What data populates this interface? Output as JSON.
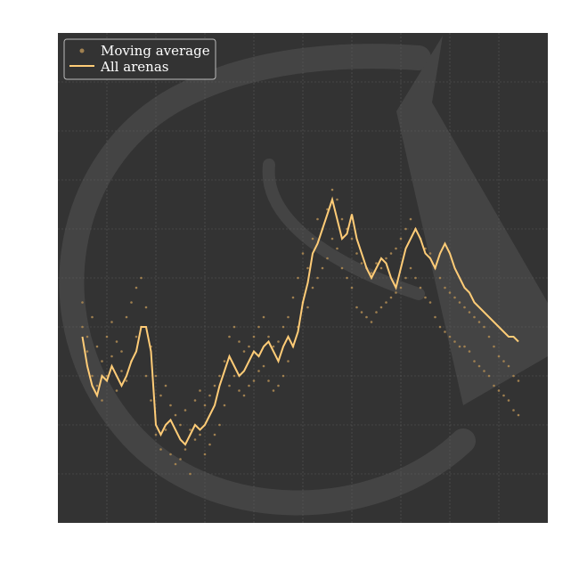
{
  "chart_data": {
    "type": "scatter",
    "title": "",
    "xlabel": "",
    "ylabel": "",
    "xlim": [
      0,
      100
    ],
    "ylim": [
      0,
      100
    ],
    "grid": true,
    "legend_position": "top-left",
    "background_color": "#333333",
    "watermark_color": "#444444",
    "grid_color": "#5a5a5a",
    "dot_color": "#a08050",
    "line_color": "#ffcc77",
    "series": [
      {
        "name": "Moving average",
        "kind": "scatter",
        "points_note": "dense cloud of small dots around the moving average line",
        "points": [
          [
            5,
            45
          ],
          [
            5,
            40
          ],
          [
            6,
            38
          ],
          [
            6,
            35
          ],
          [
            7,
            42
          ],
          [
            7,
            30
          ],
          [
            8,
            36
          ],
          [
            8,
            28
          ],
          [
            9,
            33
          ],
          [
            9,
            25
          ],
          [
            10,
            38
          ],
          [
            10,
            30
          ],
          [
            11,
            41
          ],
          [
            11,
            34
          ],
          [
            12,
            37
          ],
          [
            12,
            27
          ],
          [
            13,
            35
          ],
          [
            13,
            31
          ],
          [
            14,
            42
          ],
          [
            14,
            29
          ],
          [
            15,
            45
          ],
          [
            15,
            33
          ],
          [
            16,
            48
          ],
          [
            16,
            38
          ],
          [
            17,
            50
          ],
          [
            17,
            40
          ],
          [
            18,
            44
          ],
          [
            18,
            30
          ],
          [
            19,
            36
          ],
          [
            19,
            25
          ],
          [
            20,
            30
          ],
          [
            20,
            18
          ],
          [
            21,
            26
          ],
          [
            21,
            15
          ],
          [
            22,
            28
          ],
          [
            22,
            19
          ],
          [
            23,
            24
          ],
          [
            23,
            14
          ],
          [
            24,
            22
          ],
          [
            24,
            12
          ],
          [
            25,
            20
          ],
          [
            25,
            13
          ],
          [
            26,
            23
          ],
          [
            26,
            15
          ],
          [
            27,
            19
          ],
          [
            27,
            10
          ],
          [
            28,
            25
          ],
          [
            28,
            17
          ],
          [
            29,
            27
          ],
          [
            29,
            18
          ],
          [
            30,
            24
          ],
          [
            30,
            14
          ],
          [
            31,
            26
          ],
          [
            31,
            16
          ],
          [
            32,
            28
          ],
          [
            32,
            18
          ],
          [
            33,
            30
          ],
          [
            33,
            20
          ],
          [
            34,
            33
          ],
          [
            34,
            24
          ],
          [
            35,
            38
          ],
          [
            35,
            28
          ],
          [
            36,
            40
          ],
          [
            36,
            30
          ],
          [
            37,
            37
          ],
          [
            37,
            27
          ],
          [
            38,
            35
          ],
          [
            38,
            26
          ],
          [
            39,
            36
          ],
          [
            39,
            28
          ],
          [
            40,
            38
          ],
          [
            40,
            29
          ],
          [
            41,
            40
          ],
          [
            41,
            31
          ],
          [
            42,
            42
          ],
          [
            42,
            32
          ],
          [
            43,
            38
          ],
          [
            43,
            29
          ],
          [
            44,
            36
          ],
          [
            44,
            27
          ],
          [
            45,
            37
          ],
          [
            45,
            28
          ],
          [
            46,
            40
          ],
          [
            46,
            30
          ],
          [
            47,
            42
          ],
          [
            47,
            33
          ],
          [
            48,
            46
          ],
          [
            48,
            36
          ],
          [
            49,
            50
          ],
          [
            49,
            40
          ],
          [
            50,
            55
          ],
          [
            50,
            45
          ],
          [
            51,
            52
          ],
          [
            51,
            44
          ],
          [
            52,
            58
          ],
          [
            52,
            48
          ],
          [
            53,
            62
          ],
          [
            53,
            50
          ],
          [
            54,
            60
          ],
          [
            54,
            52
          ],
          [
            55,
            64
          ],
          [
            55,
            54
          ],
          [
            56,
            68
          ],
          [
            56,
            58
          ],
          [
            57,
            66
          ],
          [
            57,
            56
          ],
          [
            58,
            62
          ],
          [
            58,
            52
          ],
          [
            59,
            60
          ],
          [
            59,
            50
          ],
          [
            60,
            58
          ],
          [
            60,
            48
          ],
          [
            61,
            55
          ],
          [
            61,
            44
          ],
          [
            62,
            53
          ],
          [
            62,
            43
          ],
          [
            63,
            52
          ],
          [
            63,
            42
          ],
          [
            64,
            51
          ],
          [
            64,
            41
          ],
          [
            65,
            53
          ],
          [
            65,
            43
          ],
          [
            66,
            52
          ],
          [
            66,
            44
          ],
          [
            67,
            54
          ],
          [
            67,
            45
          ],
          [
            68,
            55
          ],
          [
            68,
            46
          ],
          [
            69,
            56
          ],
          [
            69,
            47
          ],
          [
            70,
            58
          ],
          [
            70,
            48
          ],
          [
            71,
            60
          ],
          [
            71,
            50
          ],
          [
            72,
            62
          ],
          [
            72,
            52
          ],
          [
            73,
            60
          ],
          [
            73,
            50
          ],
          [
            74,
            58
          ],
          [
            74,
            48
          ],
          [
            75,
            56
          ],
          [
            75,
            46
          ],
          [
            76,
            55
          ],
          [
            76,
            45
          ],
          [
            77,
            52
          ],
          [
            77,
            42
          ],
          [
            78,
            50
          ],
          [
            78,
            40
          ],
          [
            79,
            48
          ],
          [
            79,
            39
          ],
          [
            80,
            47
          ],
          [
            80,
            38
          ],
          [
            81,
            46
          ],
          [
            81,
            37
          ],
          [
            82,
            45
          ],
          [
            82,
            36
          ],
          [
            83,
            44
          ],
          [
            83,
            36
          ],
          [
            84,
            43
          ],
          [
            84,
            35
          ],
          [
            85,
            42
          ],
          [
            85,
            33
          ],
          [
            86,
            41
          ],
          [
            86,
            32
          ],
          [
            87,
            40
          ],
          [
            87,
            31
          ],
          [
            88,
            38
          ],
          [
            88,
            30
          ],
          [
            89,
            36
          ],
          [
            89,
            28
          ],
          [
            90,
            34
          ],
          [
            90,
            27
          ],
          [
            91,
            33
          ],
          [
            91,
            26
          ],
          [
            92,
            32
          ],
          [
            92,
            25
          ],
          [
            93,
            30
          ],
          [
            93,
            23
          ],
          [
            94,
            29
          ],
          [
            94,
            22
          ]
        ]
      },
      {
        "name": "All arenas",
        "kind": "line",
        "points": [
          [
            5,
            38
          ],
          [
            6,
            32
          ],
          [
            7,
            28
          ],
          [
            8,
            26
          ],
          [
            9,
            30
          ],
          [
            10,
            29
          ],
          [
            11,
            32
          ],
          [
            12,
            30
          ],
          [
            13,
            28
          ],
          [
            14,
            30
          ],
          [
            15,
            33
          ],
          [
            16,
            35
          ],
          [
            17,
            40
          ],
          [
            18,
            40
          ],
          [
            19,
            35
          ],
          [
            20,
            20
          ],
          [
            21,
            18
          ],
          [
            22,
            20
          ],
          [
            23,
            21
          ],
          [
            24,
            19
          ],
          [
            25,
            17
          ],
          [
            26,
            16
          ],
          [
            27,
            18
          ],
          [
            28,
            20
          ],
          [
            29,
            19
          ],
          [
            30,
            20
          ],
          [
            31,
            22
          ],
          [
            32,
            24
          ],
          [
            33,
            28
          ],
          [
            34,
            31
          ],
          [
            35,
            34
          ],
          [
            36,
            32
          ],
          [
            37,
            30
          ],
          [
            38,
            31
          ],
          [
            39,
            33
          ],
          [
            40,
            35
          ],
          [
            41,
            34
          ],
          [
            42,
            36
          ],
          [
            43,
            37
          ],
          [
            44,
            35
          ],
          [
            45,
            33
          ],
          [
            46,
            36
          ],
          [
            47,
            38
          ],
          [
            48,
            36
          ],
          [
            49,
            39
          ],
          [
            50,
            45
          ],
          [
            51,
            49
          ],
          [
            52,
            55
          ],
          [
            53,
            57
          ],
          [
            54,
            60
          ],
          [
            55,
            63
          ],
          [
            56,
            66
          ],
          [
            57,
            62
          ],
          [
            58,
            58
          ],
          [
            59,
            59
          ],
          [
            60,
            63
          ],
          [
            61,
            58
          ],
          [
            62,
            55
          ],
          [
            63,
            52
          ],
          [
            64,
            50
          ],
          [
            65,
            52
          ],
          [
            66,
            54
          ],
          [
            67,
            53
          ],
          [
            68,
            50
          ],
          [
            69,
            48
          ],
          [
            70,
            52
          ],
          [
            71,
            56
          ],
          [
            72,
            58
          ],
          [
            73,
            60
          ],
          [
            74,
            58
          ],
          [
            75,
            55
          ],
          [
            76,
            54
          ],
          [
            77,
            52
          ],
          [
            78,
            55
          ],
          [
            79,
            57
          ],
          [
            80,
            55
          ],
          [
            81,
            52
          ],
          [
            82,
            50
          ],
          [
            83,
            48
          ],
          [
            84,
            47
          ],
          [
            85,
            45
          ],
          [
            86,
            44
          ],
          [
            87,
            43
          ],
          [
            88,
            42
          ],
          [
            89,
            41
          ],
          [
            90,
            40
          ],
          [
            91,
            39
          ],
          [
            92,
            38
          ],
          [
            93,
            38
          ],
          [
            94,
            37
          ]
        ]
      }
    ]
  }
}
